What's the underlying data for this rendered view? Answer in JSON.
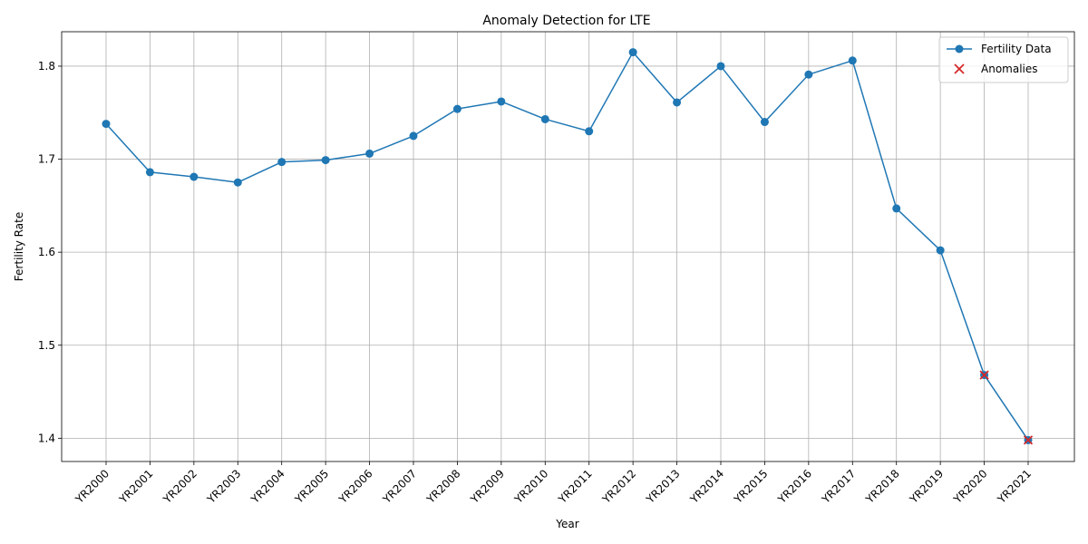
{
  "chart_data": {
    "type": "line",
    "title": "Anomaly Detection for LTE",
    "xlabel": "Year",
    "ylabel": "Fertility Rate",
    "categories": [
      "YR2000",
      "YR2001",
      "YR2002",
      "YR2003",
      "YR2004",
      "YR2005",
      "YR2006",
      "YR2007",
      "YR2008",
      "YR2009",
      "YR2010",
      "YR2011",
      "YR2012",
      "YR2013",
      "YR2014",
      "YR2015",
      "YR2016",
      "YR2017",
      "YR2018",
      "YR2019",
      "YR2020",
      "YR2021"
    ],
    "series": [
      {
        "name": "Fertility Data",
        "color": "#1f77b4",
        "marker": "circle",
        "values": [
          1.738,
          1.686,
          1.681,
          1.675,
          1.697,
          1.699,
          1.706,
          1.725,
          1.754,
          1.762,
          1.743,
          1.73,
          1.815,
          1.761,
          1.8,
          1.74,
          1.791,
          1.806,
          1.647,
          1.602,
          1.468,
          1.398
        ]
      },
      {
        "name": "Anomalies",
        "color": "#d62728",
        "marker": "x",
        "x": [
          "YR2020",
          "YR2021"
        ],
        "values": [
          1.468,
          1.398
        ]
      }
    ],
    "yticks": [
      "1.4",
      "1.5",
      "1.6",
      "1.7",
      "1.8"
    ],
    "ylim": [
      1.375,
      1.837
    ],
    "grid": true,
    "legend_position": "top-right"
  }
}
